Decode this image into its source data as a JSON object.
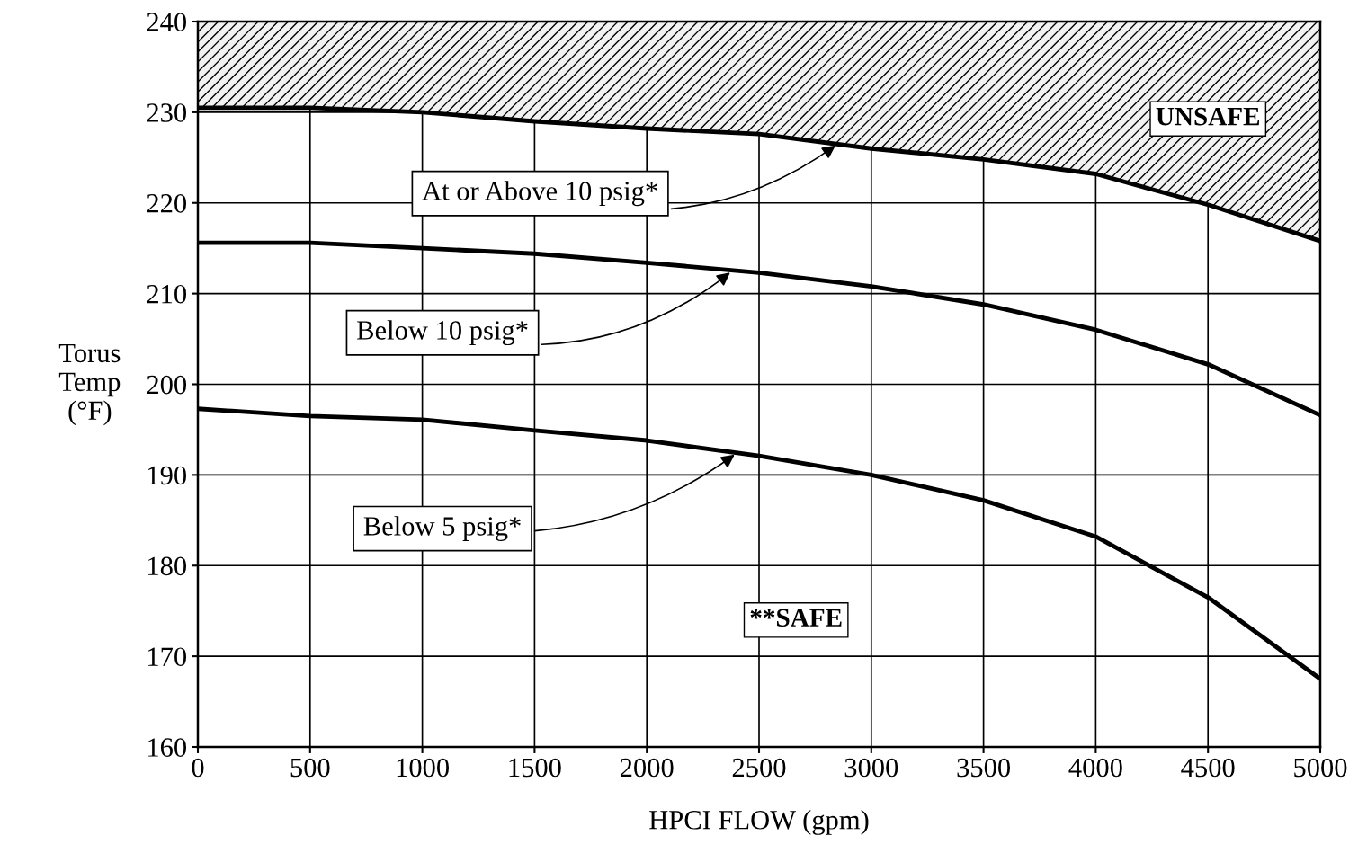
{
  "chart_data": {
    "type": "line",
    "xlabel": "HPCI FLOW (gpm)",
    "ylabel": "Torus\nTemp\n(°F)",
    "x": [
      0,
      500,
      1000,
      1500,
      2000,
      2500,
      3000,
      3500,
      4000,
      4500,
      5000
    ],
    "series": [
      {
        "color": "#000000",
        "values": [
          230.5,
          230.5,
          230,
          229,
          228.2,
          227.6,
          226,
          224.8,
          223.2,
          219.8,
          215.8
        ],
        "lower": [
          230.5,
          230.5,
          230,
          229,
          228.2,
          227.6,
          226,
          224.8,
          223.2,
          219.8,
          215.8
        ],
        "upper": [
          240,
          240,
          240,
          240,
          240,
          240,
          240,
          240,
          240,
          240,
          240
        ]
      },
      {
        "color": "#000000",
        "values": [
          215.6,
          215.6,
          215,
          214.4,
          213.4,
          212.3,
          210.8,
          208.8,
          206,
          202.2,
          196.6
        ]
      },
      {
        "color": "#000000",
        "values": [
          197.3,
          196.5,
          196.1,
          194.9,
          193.8,
          192.1,
          190,
          187.2,
          183.2,
          176.5,
          167.5
        ]
      }
    ],
    "annotations": [
      {
        "text": "At or Above 10 psig*",
        "x": 2850,
        "y": 226.5
      },
      {
        "text": "Below 10 psig*",
        "x": 2380,
        "y": 212.5
      },
      {
        "text": "Below 5 psig*",
        "x": 2400,
        "y": 192.4
      },
      "UNSAFE",
      "**SAFE"
    ],
    "xlim": [
      0,
      5000
    ],
    "xticks": [
      0,
      500,
      1000,
      1500,
      2000,
      2500,
      3000,
      3500,
      4000,
      4500,
      5000
    ],
    "ylim": [
      160,
      240
    ],
    "yticks": [
      160,
      170,
      180,
      190,
      200,
      210,
      220,
      230,
      240
    ],
    "grid": true,
    "marker": "none",
    "line_style": "solid"
  }
}
